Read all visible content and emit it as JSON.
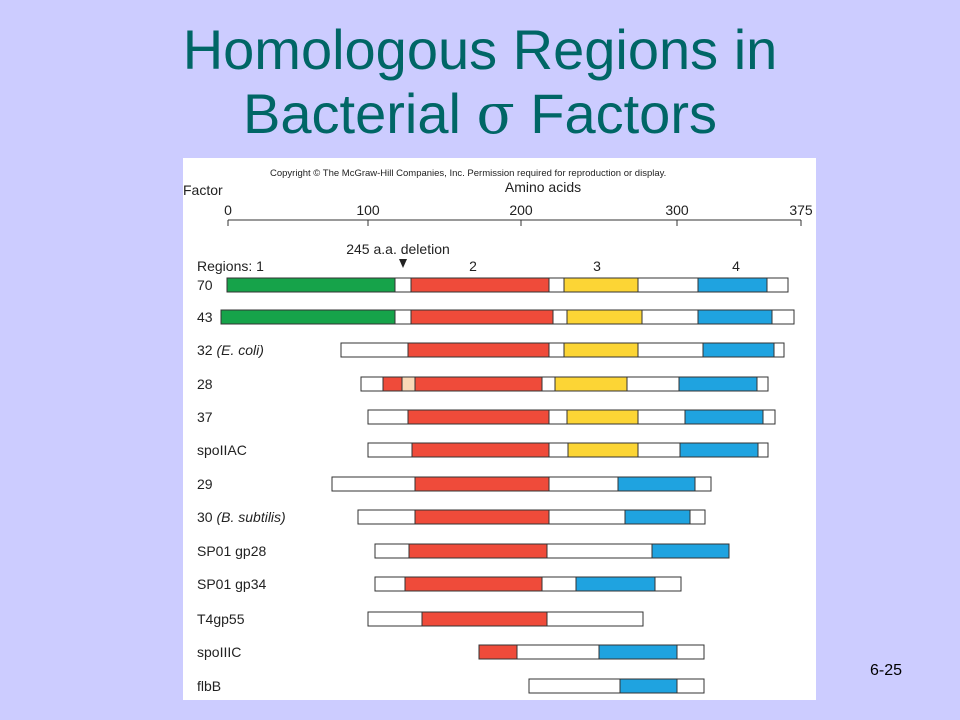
{
  "slide": {
    "title_line1": "Homologous Regions in",
    "title_line2_pre": "Bacterial ",
    "title_sigma": "σ",
    "title_line2_post": " Factors",
    "page_number": "6-25"
  },
  "figure": {
    "copyright": "Copyright © The McGraw-Hill Companies, Inc. Permission required for reproduction or display.",
    "factor_label": "Factor",
    "axis_label": "Amino acids",
    "ticks": [
      "0",
      "100",
      "200",
      "300",
      "375"
    ],
    "deletion_label": "245 a.a. deletion",
    "regions_label": "Regions: 1",
    "region_numbers": [
      "2",
      "3",
      "4"
    ],
    "colors": {
      "region1": "#16a34a",
      "region2": "#ef4b3a",
      "region3": "#fcd535",
      "region4": "#1fa3e0",
      "region1_partial": "#f9d9b8",
      "outline": "#333333"
    },
    "factors": [
      {
        "name": "70"
      },
      {
        "name": "43"
      },
      {
        "name": "32 ",
        "italic": "(E. coli)"
      },
      {
        "name": "28"
      },
      {
        "name": "37"
      },
      {
        "name": "spoIIAC"
      },
      {
        "name": "29"
      },
      {
        "name": "30 ",
        "italic": "(B. subtilis)"
      },
      {
        "name": "SP01 gp28"
      },
      {
        "name": "SP01 gp34"
      },
      {
        "name": "T4gp55"
      },
      {
        "name": "spoIIIC"
      },
      {
        "name": "flbB"
      }
    ]
  }
}
